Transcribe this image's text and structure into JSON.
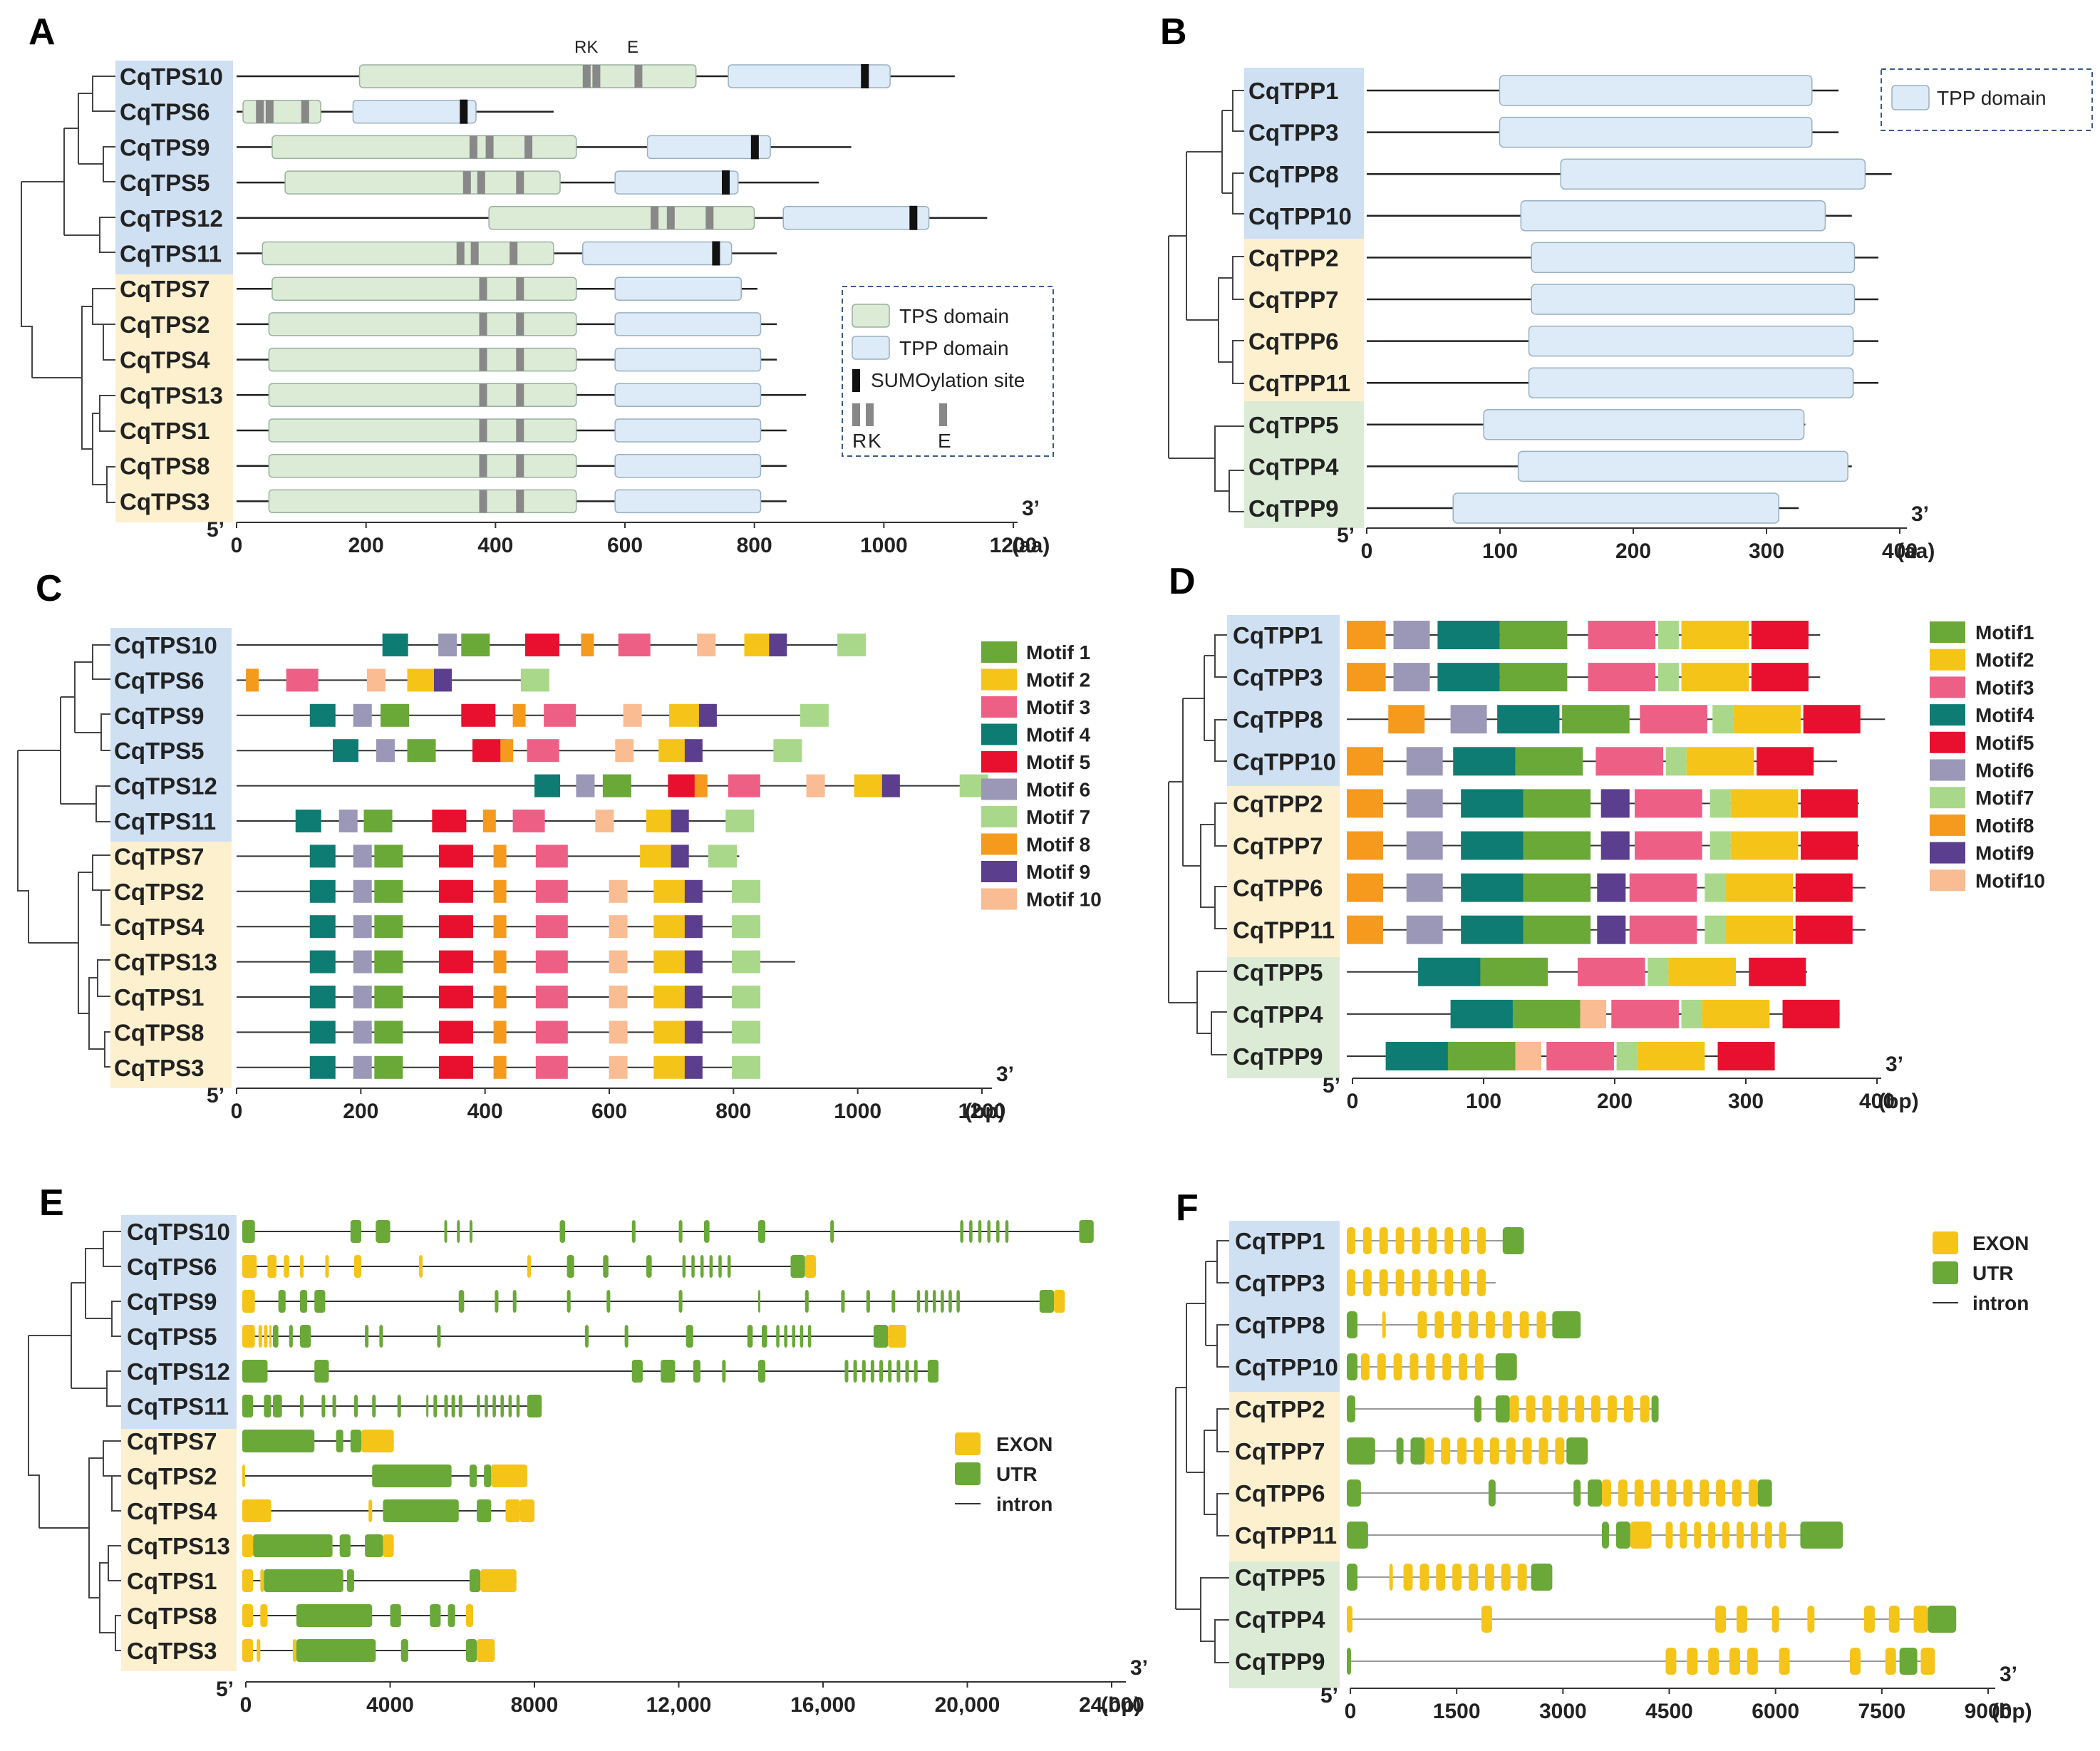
{
  "colors": {
    "blue_group": "#cfe0f3",
    "yellow_group": "#fdf0cf",
    "green_group": "#dcebd6",
    "tps_domain": "#dcebd6",
    "tpp_domain": "#dcebf7",
    "domain_stroke": "#9ab0a0",
    "exon": "#f5c418",
    "utr": "#6aa838",
    "motifs": [
      "#6aa838",
      "#f5c418",
      "#ee5f86",
      "#0e7c73",
      "#e8102e",
      "#9b97b6",
      "#a9d88b",
      "#f59a1d",
      "#5b3e8d",
      "#f9bc93"
    ]
  },
  "panel_labels": [
    "A",
    "B",
    "C",
    "D",
    "E",
    "F"
  ],
  "axis_ends": {
    "five_prime": "5’",
    "three_prime": "3’"
  },
  "panels": {
    "A": {
      "axis": {
        "ticks": [
          "0",
          "200",
          "400",
          "600",
          "800",
          "1000",
          "1200"
        ],
        "unit": "(aa)"
      },
      "labels": [
        "CqTPS10",
        "CqTPS6",
        "CqTPS9",
        "CqTPS5",
        "CqTPS12",
        "CqTPS11",
        "CqTPS7",
        "CqTPS2",
        "CqTPS4",
        "CqTPS13",
        "CqTPS1",
        "CqTPS8",
        "CqTPS3"
      ],
      "motif_letters": {
        "rk": "RK",
        "e": "E"
      },
      "legend": {
        "tps": "TPS domain",
        "tpp": "TPP domain",
        "sumo": "SUMOylation site",
        "r": "R",
        "k": "K",
        "e": "E"
      }
    },
    "B": {
      "axis": {
        "ticks": [
          "0",
          "100",
          "200",
          "300",
          "400"
        ],
        "unit": "(aa)"
      },
      "labels": [
        "CqTPP1",
        "CqTPP3",
        "CqTPP8",
        "CqTPP10",
        "CqTPP2",
        "CqTPP7",
        "CqTPP6",
        "CqTPP11",
        "CqTPP5",
        "CqTPP4",
        "CqTPP9"
      ],
      "legend": {
        "tpp": "TPP domain"
      }
    },
    "C": {
      "axis": {
        "ticks": [
          "0",
          "200",
          "400",
          "600",
          "800",
          "1000",
          "1200"
        ],
        "unit": "(bp)"
      },
      "labels": [
        "CqTPS10",
        "CqTPS6",
        "CqTPS9",
        "CqTPS5",
        "CqTPS12",
        "CqTPS11",
        "CqTPS7",
        "CqTPS2",
        "CqTPS4",
        "CqTPS13",
        "CqTPS1",
        "CqTPS8",
        "CqTPS3"
      ],
      "legend": [
        "Motif 1",
        "Motif 2",
        "Motif 3",
        "Motif 4",
        "Motif 5",
        "Motif 6",
        "Motif 7",
        "Motif 8",
        "Motif 9",
        "Motif 10"
      ]
    },
    "D": {
      "axis": {
        "ticks": [
          "0",
          "100",
          "200",
          "300",
          "400"
        ],
        "unit": "(bp)"
      },
      "labels": [
        "CqTPP1",
        "CqTPP3",
        "CqTPP8",
        "CqTPP10",
        "CqTPP2",
        "CqTPP7",
        "CqTPP6",
        "CqTPP11",
        "CqTPP5",
        "CqTPP4",
        "CqTPP9"
      ],
      "legend": [
        "Motif1",
        "Motif2",
        "Motif3",
        "Motif4",
        "Motif5",
        "Motif6",
        "Motif7",
        "Motif8",
        "Motif9",
        "Motif10"
      ]
    },
    "E": {
      "axis": {
        "ticks": [
          "0",
          "4000",
          "8000",
          "12,000",
          "16,000",
          "20,000",
          "24,000"
        ],
        "unit": "(bp)"
      },
      "labels": [
        "CqTPS10",
        "CqTPS6",
        "CqTPS9",
        "CqTPS5",
        "CqTPS12",
        "CqTPS11",
        "CqTPS7",
        "CqTPS2",
        "CqTPS4",
        "CqTPS13",
        "CqTPS1",
        "CqTPS8",
        "CqTPS3"
      ],
      "legend": {
        "exon": "EXON",
        "utr": "UTR",
        "intron": "intron"
      }
    },
    "F": {
      "axis": {
        "ticks": [
          "0",
          "1500",
          "3000",
          "4500",
          "6000",
          "7500",
          "9000"
        ],
        "unit": "(bp)"
      },
      "labels": [
        "CqTPP1",
        "CqTPP3",
        "CqTPP8",
        "CqTPP10",
        "CqTPP2",
        "CqTPP7",
        "CqTPP6",
        "CqTPP11",
        "CqTPP5",
        "CqTPP4",
        "CqTPP9"
      ],
      "legend": {
        "exon": "EXON",
        "utr": "UTR",
        "intron": "intron"
      }
    }
  }
}
